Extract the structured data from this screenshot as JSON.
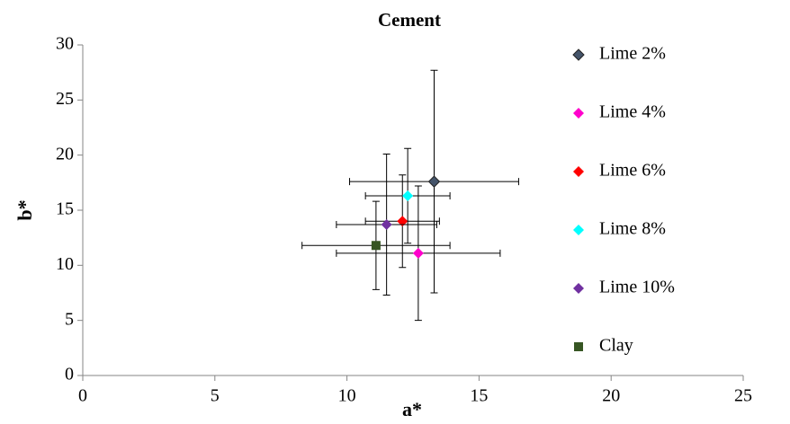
{
  "chart_data": {
    "type": "scatter",
    "title": "Cement",
    "x_label": "a*",
    "y_label": "b*",
    "xlim": [
      0,
      25
    ],
    "xticks": [
      0,
      5,
      10,
      15,
      20,
      25
    ],
    "ylim": [
      0,
      30
    ],
    "yticks": [
      0,
      5,
      10,
      15,
      20,
      25,
      30
    ],
    "grid": false,
    "legend": "right",
    "series": [
      {
        "name": "Lime 2%",
        "color": "#44546a",
        "marker": "diamond",
        "x": [
          13.3
        ],
        "values": [
          17.6
        ],
        "xerr": [
          3.2
        ],
        "yerr": [
          10.1
        ]
      },
      {
        "name": "Lime 4%",
        "color": "#ff00cc",
        "marker": "diamond",
        "x": [
          12.7
        ],
        "values": [
          11.1
        ],
        "xerr": [
          3.1
        ],
        "yerr": [
          6.1
        ]
      },
      {
        "name": "Lime 6%",
        "color": "#ff0000",
        "marker": "diamond",
        "x": [
          12.1
        ],
        "values": [
          14.0
        ],
        "xerr": [
          1.4
        ],
        "yerr": [
          4.2
        ]
      },
      {
        "name": "Lime 8%",
        "color": "#00ffff",
        "marker": "diamond",
        "x": [
          12.3
        ],
        "values": [
          16.3
        ],
        "xerr": [
          1.6
        ],
        "yerr": [
          4.3
        ]
      },
      {
        "name": "Lime 10%",
        "color": "#7030a0",
        "marker": "diamond",
        "x": [
          11.5
        ],
        "values": [
          13.7
        ],
        "xerr": [
          1.9
        ],
        "yerr": [
          6.4
        ]
      },
      {
        "name": "Clay",
        "color": "#375623",
        "marker": "square",
        "x": [
          11.1
        ],
        "values": [
          11.8
        ],
        "xerr": [
          2.8
        ],
        "yerr": [
          4.0
        ]
      }
    ]
  }
}
